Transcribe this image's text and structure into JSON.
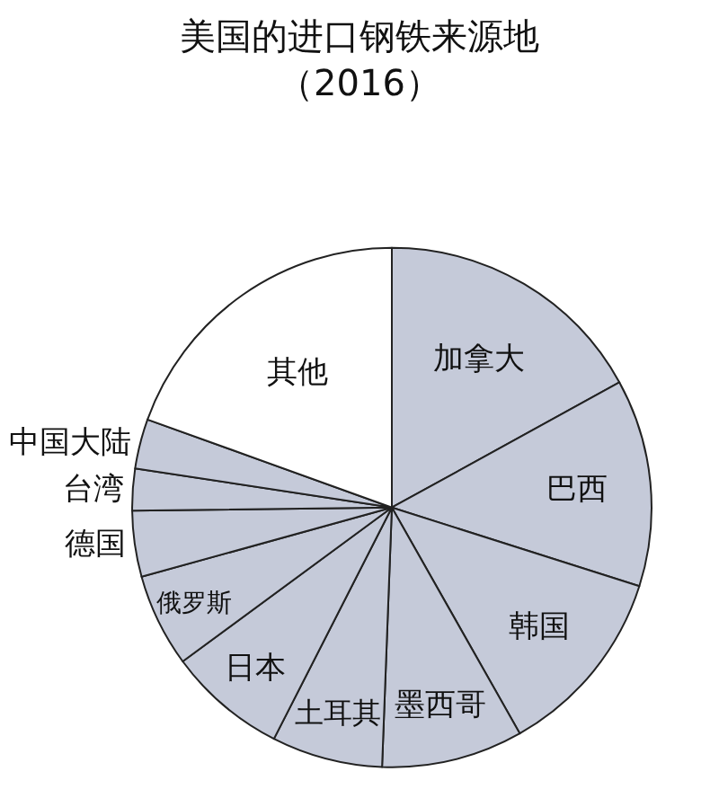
{
  "chart_data": {
    "type": "pie",
    "title": "美国的进口钢铁来源地",
    "subtitle": "（2016）",
    "categories": [
      "加拿大",
      "巴西",
      "韩国",
      "墨西哥",
      "土耳其",
      "日本",
      "俄罗斯",
      "德国",
      "台湾",
      "中国大陆",
      "其他"
    ],
    "values": [
      17,
      12.9,
      11.9,
      8.8,
      6.9,
      7.4,
      5.8,
      4.1,
      2.6,
      3.1,
      19.5
    ],
    "colors": [
      "#c5cad9",
      "#c5cad9",
      "#c5cad9",
      "#c5cad9",
      "#c5cad9",
      "#c5cad9",
      "#c5cad9",
      "#c5cad9",
      "#c5cad9",
      "#c5cad9",
      "#ffffff"
    ],
    "legend": false
  }
}
